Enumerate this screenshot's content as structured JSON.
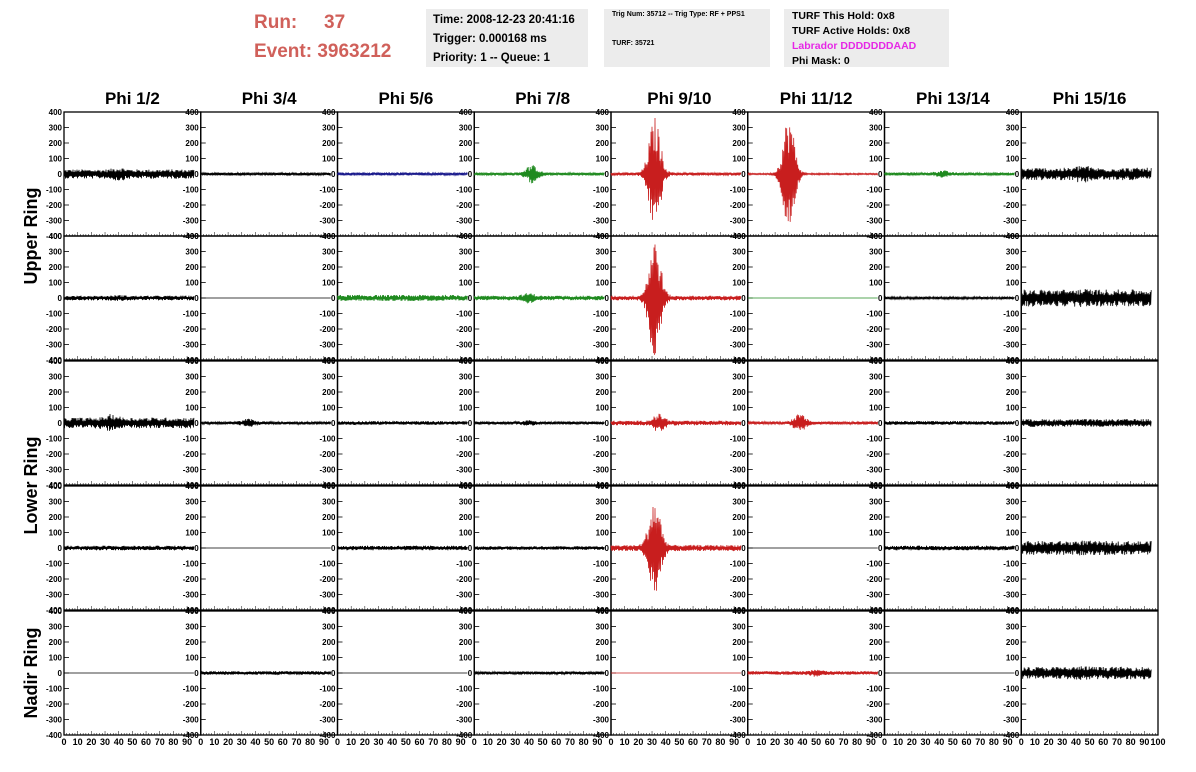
{
  "header": {
    "run_label": "Run:",
    "run_value": "37",
    "event_label": "Event:",
    "event_value": "3963212",
    "time_text": "Time: 2008-12-23 20:41:16",
    "trigger_text": "Trigger: 0.000168 ms",
    "priority_text": "Priority: 1 -- Queue: 1",
    "trig_num_text": "Trig Num: 35712 -- Trig Type: RF + PPS1",
    "turf_text": "TURF: 35721",
    "turf_hold_text": "TURF This Hold: 0x8",
    "turf_active_text": "TURF Active Holds: 0x8",
    "labrador_text": "Labrador DDDDDDDAAD",
    "phi_mask_text": "Phi Mask: 0",
    "labrador_color": "#e628e6"
  },
  "chart_data": {
    "type": "line",
    "columns": [
      "Phi 1/2",
      "Phi 3/4",
      "Phi 5/6",
      "Phi 7/8",
      "Phi 9/10",
      "Phi 11/12",
      "Phi 13/14",
      "Phi 15/16"
    ],
    "ring_labels": [
      {
        "label": "Upper Ring",
        "rows": [
          0,
          1
        ]
      },
      {
        "label": "Lower Ring",
        "rows": [
          2,
          3
        ]
      },
      {
        "label": "Nadir Ring",
        "rows": [
          4
        ]
      }
    ],
    "ylim": [
      -400,
      400
    ],
    "y_ticks": [
      -400,
      -300,
      -200,
      -100,
      0,
      100,
      200,
      300,
      400
    ],
    "xlim": [
      0,
      100
    ],
    "x_ticks": [
      0,
      10,
      20,
      30,
      40,
      50,
      60,
      70,
      80,
      90,
      100
    ],
    "colors": {
      "black": "#000000",
      "blue": "#1a1a8c",
      "green": "#1f8a1f",
      "red": "#c81e1e"
    },
    "waveforms": [
      [
        {
          "color": "black",
          "amp": 30,
          "burst_at": 40,
          "burst_amp": 45
        },
        {
          "color": "black",
          "amp": 10,
          "burst_at": 40,
          "burst_amp": 10
        },
        {
          "color": "blue",
          "amp": 10,
          "burst_at": 40,
          "burst_amp": 10
        },
        {
          "color": "green",
          "amp": 10,
          "burst_at": 42,
          "burst_amp": 60
        },
        {
          "color": "red",
          "amp": 10,
          "burst_at": 32,
          "burst_amp": 370
        },
        {
          "color": "red",
          "amp": 5,
          "burst_at": 30,
          "burst_amp": 380
        },
        {
          "color": "green",
          "amp": 10,
          "burst_at": 42,
          "burst_amp": 25
        },
        {
          "color": "black",
          "amp": 40,
          "burst_at": 45,
          "burst_amp": 60
        }
      ],
      [
        {
          "color": "black",
          "amp": 15,
          "burst_at": 40,
          "burst_amp": 20
        },
        {
          "color": "black",
          "amp": 0,
          "burst_at": 40,
          "burst_amp": 0
        },
        {
          "color": "green",
          "amp": 20,
          "burst_at": 40,
          "burst_amp": 20
        },
        {
          "color": "green",
          "amp": 15,
          "burst_at": 40,
          "burst_amp": 35
        },
        {
          "color": "red",
          "amp": 15,
          "burst_at": 32,
          "burst_amp": 400
        },
        {
          "color": "green",
          "amp": 0,
          "burst_at": 40,
          "burst_amp": 0
        },
        {
          "color": "black",
          "amp": 8,
          "burst_at": 40,
          "burst_amp": 8
        },
        {
          "color": "black",
          "amp": 55,
          "burst_at": 45,
          "burst_amp": 60
        }
      ],
      [
        {
          "color": "black",
          "amp": 35,
          "burst_at": 35,
          "burst_amp": 60
        },
        {
          "color": "black",
          "amp": 10,
          "burst_at": 35,
          "burst_amp": 30
        },
        {
          "color": "black",
          "amp": 12,
          "burst_at": 40,
          "burst_amp": 12
        },
        {
          "color": "black",
          "amp": 10,
          "burst_at": 40,
          "burst_amp": 20
        },
        {
          "color": "red",
          "amp": 15,
          "burst_at": 35,
          "burst_amp": 60
        },
        {
          "color": "red",
          "amp": 10,
          "burst_at": 38,
          "burst_amp": 60
        },
        {
          "color": "black",
          "amp": 12,
          "burst_at": 40,
          "burst_amp": 12
        },
        {
          "color": "black",
          "amp": 25,
          "burst_at": 40,
          "burst_amp": 25
        }
      ],
      [
        {
          "color": "black",
          "amp": 15,
          "burst_at": 40,
          "burst_amp": 15
        },
        {
          "color": "black",
          "amp": 0,
          "burst_at": 40,
          "burst_amp": 0
        },
        {
          "color": "black",
          "amp": 15,
          "burst_at": 40,
          "burst_amp": 15
        },
        {
          "color": "black",
          "amp": 12,
          "burst_at": 40,
          "burst_amp": 12
        },
        {
          "color": "red",
          "amp": 20,
          "burst_at": 32,
          "burst_amp": 330
        },
        {
          "color": "black",
          "amp": 0,
          "burst_at": 40,
          "burst_amp": 0
        },
        {
          "color": "black",
          "amp": 15,
          "burst_at": 40,
          "burst_amp": 15
        },
        {
          "color": "black",
          "amp": 45,
          "burst_at": 45,
          "burst_amp": 50
        }
      ],
      [
        {
          "color": "black",
          "amp": 0,
          "burst_at": 40,
          "burst_amp": 0
        },
        {
          "color": "black",
          "amp": 12,
          "burst_at": 40,
          "burst_amp": 12
        },
        {
          "color": "black",
          "amp": 0,
          "burst_at": 40,
          "burst_amp": 0
        },
        {
          "color": "black",
          "amp": 10,
          "burst_at": 40,
          "burst_amp": 10
        },
        {
          "color": "red",
          "amp": 0,
          "burst_at": 40,
          "burst_amp": 0
        },
        {
          "color": "red",
          "amp": 12,
          "burst_at": 50,
          "burst_amp": 25
        },
        {
          "color": "black",
          "amp": 0,
          "burst_at": 40,
          "burst_amp": 0
        },
        {
          "color": "black",
          "amp": 40,
          "burst_at": 45,
          "burst_amp": 45
        }
      ]
    ]
  }
}
